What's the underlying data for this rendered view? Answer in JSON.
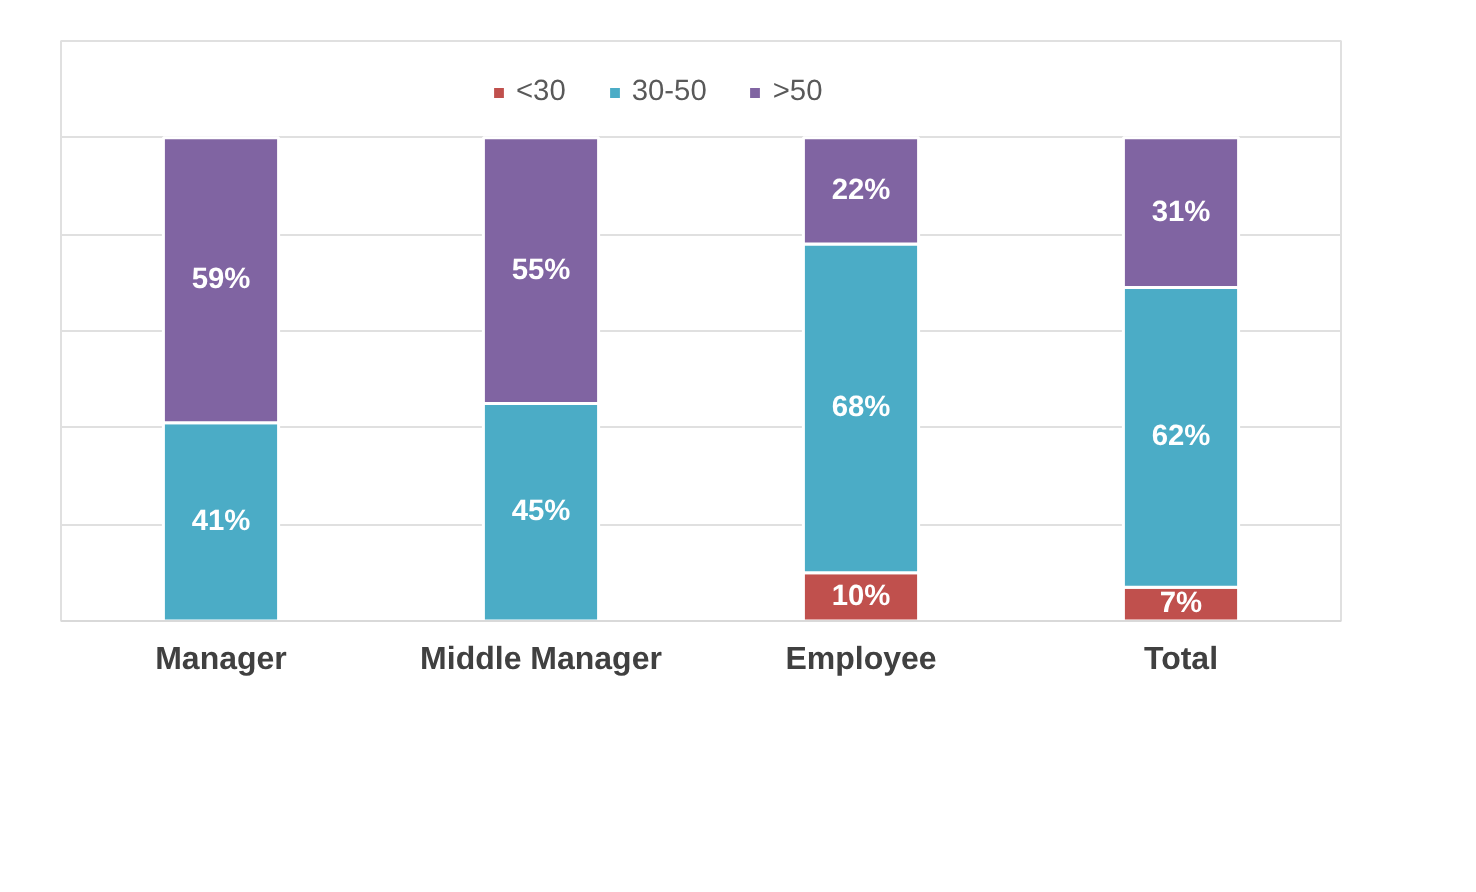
{
  "chart_data": {
    "type": "bar",
    "stacked": true,
    "categories": [
      "Manager",
      "Middle Manager",
      "Employee",
      "Total"
    ],
    "series": [
      {
        "name": "<30",
        "color": "#c0504d",
        "values": [
          0,
          0,
          10,
          7
        ],
        "value_labels": [
          null,
          null,
          "10%",
          "7%"
        ]
      },
      {
        "name": "30-50",
        "color": "#4bacc6",
        "values": [
          41,
          45,
          68,
          62
        ],
        "value_labels": [
          "41%",
          "45%",
          "68%",
          "62%"
        ]
      },
      {
        "name": ">50",
        "color": "#8064a2",
        "values": [
          59,
          55,
          22,
          31
        ],
        "value_labels": [
          "59%",
          "55%",
          "22%",
          "31%"
        ]
      }
    ],
    "ylim": [
      0,
      120
    ],
    "yticks": [
      {
        "value": 0,
        "label": null
      },
      {
        "value": 20,
        "label": null
      },
      {
        "value": 40,
        "label": null
      },
      {
        "value": 60,
        "label": null
      },
      {
        "value": 80,
        "label": null
      },
      {
        "value": 100,
        "label": null
      }
    ],
    "grid": "y",
    "tick_labels": "x",
    "legend": "top"
  }
}
